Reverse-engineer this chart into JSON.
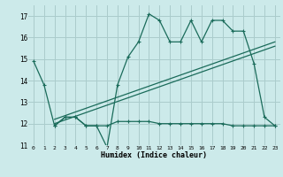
{
  "xlabel": "Humidex (Indice chaleur)",
  "bg_color": "#cceaea",
  "grid_color": "#aacccc",
  "line_color": "#1a6b5a",
  "xlim": [
    -0.5,
    23.5
  ],
  "ylim": [
    11,
    17.5
  ],
  "yticks": [
    11,
    12,
    13,
    14,
    15,
    16,
    17
  ],
  "xticks": [
    0,
    1,
    2,
    3,
    4,
    5,
    6,
    7,
    8,
    9,
    10,
    11,
    12,
    13,
    14,
    15,
    16,
    17,
    18,
    19,
    20,
    21,
    22,
    23
  ],
  "main_x": [
    0,
    1,
    2,
    3,
    4,
    5,
    6,
    7,
    8,
    9,
    10,
    11,
    12,
    13,
    14,
    15,
    16,
    17,
    18,
    19,
    20,
    21,
    22,
    23
  ],
  "main_y": [
    14.9,
    13.8,
    11.9,
    12.3,
    12.3,
    11.9,
    11.9,
    10.9,
    13.8,
    15.1,
    15.8,
    17.1,
    16.8,
    15.8,
    15.8,
    16.8,
    15.8,
    16.8,
    16.8,
    16.3,
    16.3,
    14.8,
    12.3,
    11.9
  ],
  "low_x": [
    2,
    3,
    4,
    5,
    6,
    7,
    8,
    9,
    10,
    11,
    12,
    13,
    14,
    15,
    16,
    17,
    18,
    19,
    20,
    21,
    22,
    23
  ],
  "low_y": [
    11.9,
    12.3,
    12.3,
    11.9,
    11.9,
    11.9,
    12.1,
    12.1,
    12.1,
    12.1,
    12.0,
    12.0,
    12.0,
    12.0,
    12.0,
    12.0,
    12.0,
    11.9,
    11.9,
    11.9,
    11.9,
    11.9
  ],
  "trend1_x": [
    2,
    23
  ],
  "trend1_y": [
    12.2,
    15.8
  ],
  "trend2_x": [
    2,
    23
  ],
  "trend2_y": [
    12.0,
    15.6
  ]
}
